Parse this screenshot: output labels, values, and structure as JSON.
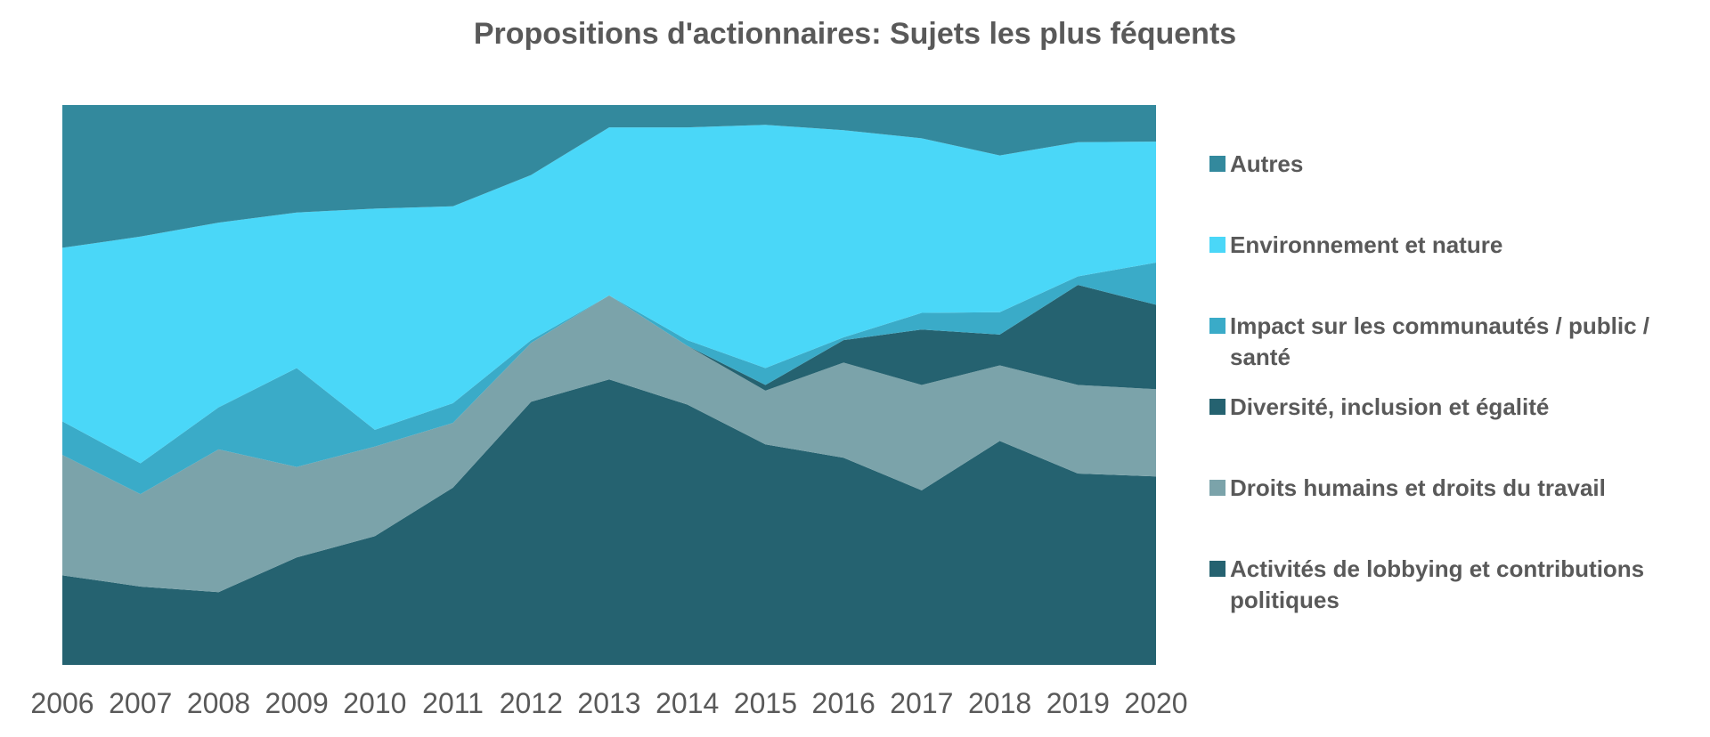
{
  "chart_data": {
    "type": "area",
    "stacked": "percent",
    "title": "Propositions d'actionnaires: Sujets les plus féquents",
    "xlabel": "",
    "ylabel": "",
    "ylim": [
      0,
      100
    ],
    "grid": false,
    "legend_position": "right",
    "categories": [
      "2006",
      "2007",
      "2008",
      "2009",
      "2010",
      "2011",
      "2012",
      "2013",
      "2014",
      "2015",
      "2016",
      "2017",
      "2018",
      "2019",
      "2020"
    ],
    "series": [
      {
        "name": "Activités de lobbying et contributions politiques",
        "legend_lines": [
          "Activités de lobbying et contributions",
          "politiques"
        ],
        "color": "#256270",
        "values": [
          16,
          14,
          13,
          19,
          23,
          31.5,
          47,
          51,
          46.5,
          39,
          37,
          31.5,
          40,
          33.5,
          33.5
        ]
      },
      {
        "name": "Droits humains et droits du travail",
        "legend_lines": [
          "Droits humains et droits du travail"
        ],
        "color": "#7ba3aa",
        "values": [
          21.5,
          16.5,
          25.5,
          16,
          16,
          11.5,
          10.5,
          15,
          10.5,
          9.5,
          17,
          19,
          13.5,
          15.5,
          15.5
        ]
      },
      {
        "name": "Diversité, inclusion et égalité",
        "legend_lines": [
          "Diversité, inclusion et égalité"
        ],
        "color": "#256270",
        "values": [
          0,
          0,
          0,
          0,
          0,
          0,
          0,
          0,
          0,
          1,
          4,
          10,
          5.5,
          17.5,
          15
        ]
      },
      {
        "name": "Impact sur les communautés / public / santé",
        "legend_lines": [
          "Impact sur les communautés / public /",
          "santé"
        ],
        "color": "#3aabc8",
        "values": [
          6,
          5.5,
          7.5,
          17.5,
          3,
          3.5,
          0.5,
          0,
          1,
          3,
          0.5,
          3,
          4,
          1.5,
          7.5
        ]
      },
      {
        "name": "Environnement et nature",
        "legend_lines": [
          "Environnement et nature"
        ],
        "color": "#4ad7f8",
        "values": [
          31,
          40.5,
          33,
          27.5,
          39.5,
          35,
          29.5,
          30,
          38,
          43,
          37,
          31.5,
          28,
          23.5,
          21.5
        ]
      },
      {
        "name": "Autres",
        "legend_lines": [
          "Autres"
        ],
        "color": "#33899d",
        "values": [
          25.5,
          23.5,
          21,
          19,
          18.5,
          18,
          12.5,
          4,
          4,
          3.5,
          4.5,
          6,
          9,
          6.5,
          6.5
        ]
      }
    ]
  }
}
